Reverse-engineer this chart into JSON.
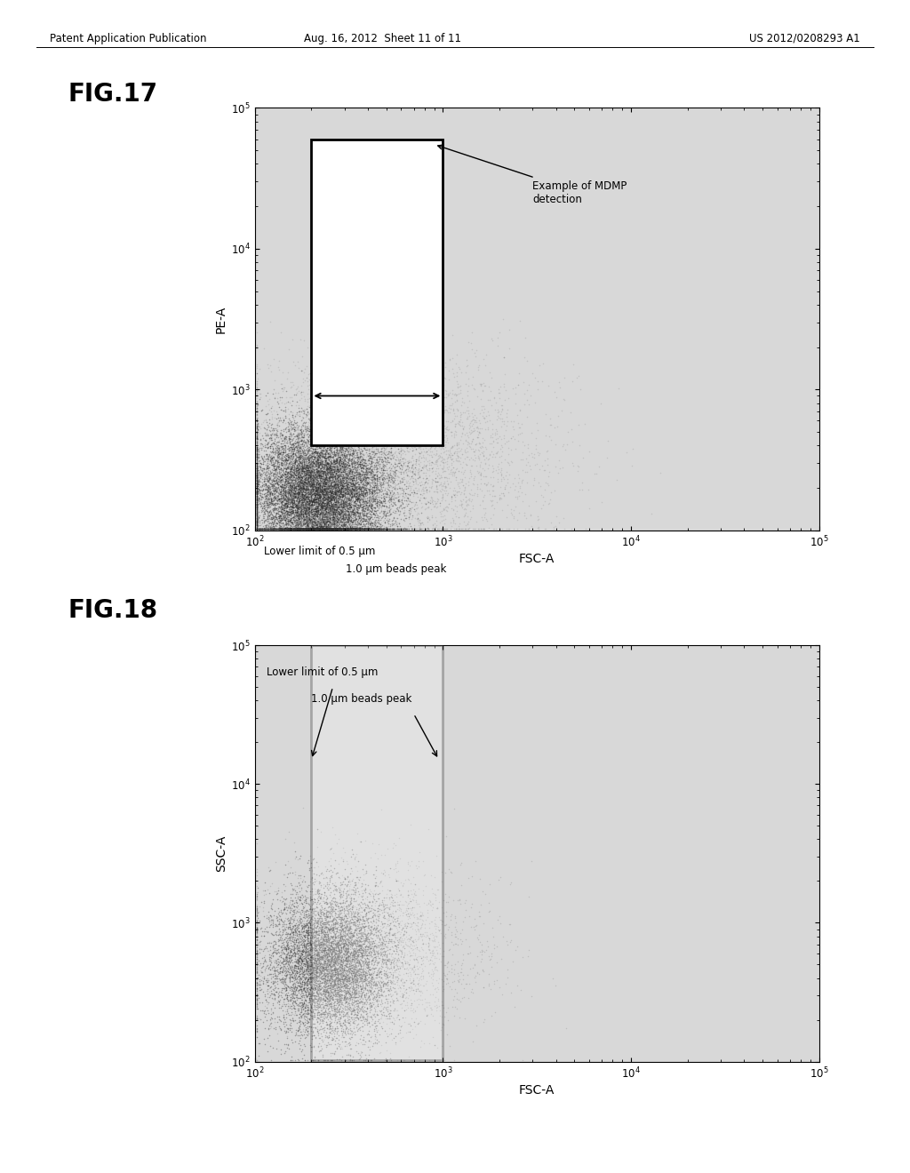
{
  "header_left": "Patent Application Publication",
  "header_center": "Aug. 16, 2012  Sheet 11 of 11",
  "header_right": "US 2012/0208293 A1",
  "fig17_title": "FIG.17",
  "fig18_title": "FIG.18",
  "fig17_xlabel": "FSC-A",
  "fig17_ylabel": "PE-A",
  "fig18_xlabel": "FSC-A",
  "fig18_ylabel": "SSC-A",
  "fig17_annotation": "Example of MDMP\ndetection",
  "fig17_label1": "Lower limit of 0.5 μm",
  "fig17_label2": "1.0 μm beads peak",
  "fig18_label1": "Lower limit of 0.5 μm",
  "fig18_label2": "1.0 μm beads peak",
  "background_color": "#ffffff",
  "plot_bg_color": "#d8d8d8",
  "gate_facecolor": "#ffffff",
  "gate_edgecolor": "#000000"
}
